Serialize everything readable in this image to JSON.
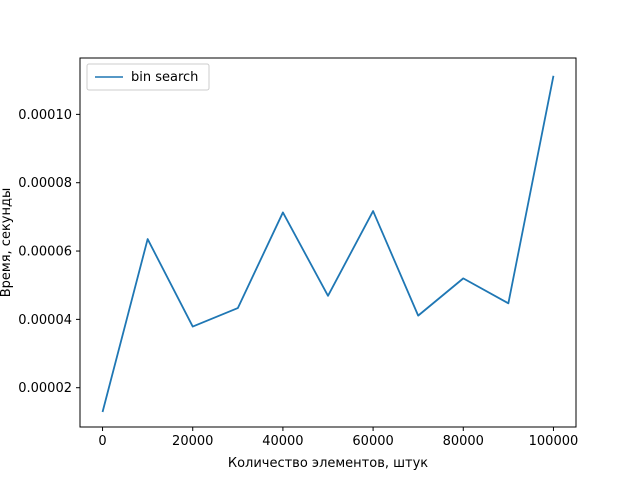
{
  "chart_data": {
    "type": "line",
    "title": "",
    "xlabel": "Количество элементов, штук",
    "ylabel": "Время, секунды",
    "xlim": [
      -5000,
      105000
    ],
    "ylim": [
      8.5e-06,
      0.0001165
    ],
    "xticks": [
      0,
      20000,
      40000,
      60000,
      80000,
      100000
    ],
    "xtick_labels": [
      "0",
      "20000",
      "40000",
      "60000",
      "80000",
      "100000"
    ],
    "yticks": [
      2e-05,
      4e-05,
      6e-05,
      8e-05,
      0.0001
    ],
    "ytick_labels": [
      "0.00002",
      "0.00004",
      "0.00006",
      "0.00008",
      "0.00010"
    ],
    "grid": false,
    "legend": {
      "position": "top-left"
    },
    "series": [
      {
        "name": "bin search",
        "color": "#1f77b4",
        "x": [
          0,
          10000,
          20000,
          30000,
          40000,
          50000,
          60000,
          70000,
          80000,
          90000,
          100000
        ],
        "y": [
          1.29e-05,
          6.35e-05,
          3.79e-05,
          4.33e-05,
          7.13e-05,
          4.69e-05,
          7.17e-05,
          4.11e-05,
          5.2e-05,
          4.47e-05,
          0.0001113
        ]
      }
    ]
  }
}
